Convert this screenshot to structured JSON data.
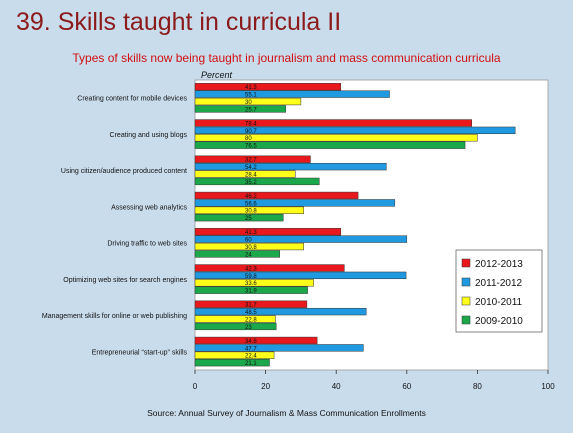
{
  "title": "39. Skills taught in curricula II",
  "subtitle": "Types of skills now being taught in journalism and mass communication curricula",
  "source": "Source: Annual Survey of Journalism & Mass Communication Enrollments",
  "chart_data": {
    "type": "bar",
    "orientation": "horizontal",
    "unit_label": "Percent",
    "xlim": [
      0,
      100
    ],
    "ticks": [
      0,
      20,
      40,
      60,
      80,
      100
    ],
    "grid": false,
    "legend_position": "right",
    "categories": [
      "Creating content for mobile devices",
      "Creating and using blogs",
      "Using citizen/audience produced content",
      "Assessing web analytics",
      "Driving traffic to web sites",
      "Optimizing web sites for search engines",
      "Management skills for online or web publishing",
      "Entrepreneurial “start-up” skills"
    ],
    "series": [
      {
        "name": "2012-2013",
        "color": "#e8181c",
        "values": [
          41.3,
          78.4,
          32.7,
          46.2,
          41.3,
          42.3,
          31.7,
          34.6
        ]
      },
      {
        "name": "2011-2012",
        "color": "#1f9ae0",
        "values": [
          55.1,
          90.7,
          54.2,
          56.6,
          60,
          59.8,
          48.5,
          47.7
        ]
      },
      {
        "name": "2010-2011",
        "color": "#ffff1a",
        "values": [
          30,
          80,
          28.4,
          30.8,
          30.8,
          33.6,
          22.8,
          22.4
        ]
      },
      {
        "name": "2009-2010",
        "color": "#1aa84a",
        "values": [
          25.7,
          76.5,
          35.2,
          25,
          24,
          31.9,
          23,
          21.1
        ]
      }
    ]
  }
}
